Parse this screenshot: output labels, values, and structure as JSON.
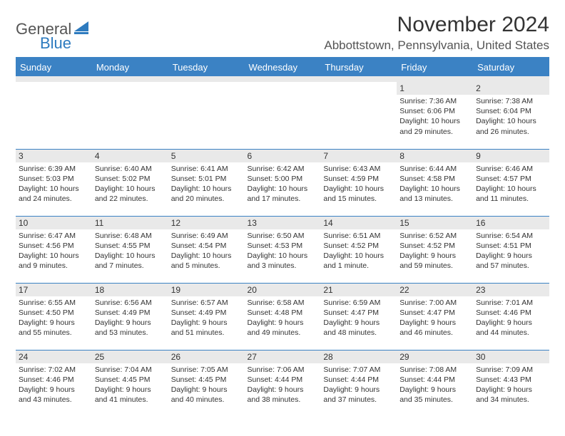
{
  "logo": {
    "part1": "General",
    "part2": "Blue"
  },
  "title": "November 2024",
  "location": "Abbottstown, Pennsylvania, United States",
  "colors": {
    "accent": "#3b82c4",
    "header_bg": "#3b82c4",
    "daynum_bg": "#e9e9e9",
    "text": "#333333",
    "logo_gray": "#555555",
    "logo_blue": "#2e7bbf"
  },
  "day_names": [
    "Sunday",
    "Monday",
    "Tuesday",
    "Wednesday",
    "Thursday",
    "Friday",
    "Saturday"
  ],
  "weeks": [
    [
      null,
      null,
      null,
      null,
      null,
      {
        "n": "1",
        "sunrise": "7:36 AM",
        "sunset": "6:06 PM",
        "daylight": "10 hours and 29 minutes."
      },
      {
        "n": "2",
        "sunrise": "7:38 AM",
        "sunset": "6:04 PM",
        "daylight": "10 hours and 26 minutes."
      }
    ],
    [
      {
        "n": "3",
        "sunrise": "6:39 AM",
        "sunset": "5:03 PM",
        "daylight": "10 hours and 24 minutes."
      },
      {
        "n": "4",
        "sunrise": "6:40 AM",
        "sunset": "5:02 PM",
        "daylight": "10 hours and 22 minutes."
      },
      {
        "n": "5",
        "sunrise": "6:41 AM",
        "sunset": "5:01 PM",
        "daylight": "10 hours and 20 minutes."
      },
      {
        "n": "6",
        "sunrise": "6:42 AM",
        "sunset": "5:00 PM",
        "daylight": "10 hours and 17 minutes."
      },
      {
        "n": "7",
        "sunrise": "6:43 AM",
        "sunset": "4:59 PM",
        "daylight": "10 hours and 15 minutes."
      },
      {
        "n": "8",
        "sunrise": "6:44 AM",
        "sunset": "4:58 PM",
        "daylight": "10 hours and 13 minutes."
      },
      {
        "n": "9",
        "sunrise": "6:46 AM",
        "sunset": "4:57 PM",
        "daylight": "10 hours and 11 minutes."
      }
    ],
    [
      {
        "n": "10",
        "sunrise": "6:47 AM",
        "sunset": "4:56 PM",
        "daylight": "10 hours and 9 minutes."
      },
      {
        "n": "11",
        "sunrise": "6:48 AM",
        "sunset": "4:55 PM",
        "daylight": "10 hours and 7 minutes."
      },
      {
        "n": "12",
        "sunrise": "6:49 AM",
        "sunset": "4:54 PM",
        "daylight": "10 hours and 5 minutes."
      },
      {
        "n": "13",
        "sunrise": "6:50 AM",
        "sunset": "4:53 PM",
        "daylight": "10 hours and 3 minutes."
      },
      {
        "n": "14",
        "sunrise": "6:51 AM",
        "sunset": "4:52 PM",
        "daylight": "10 hours and 1 minute."
      },
      {
        "n": "15",
        "sunrise": "6:52 AM",
        "sunset": "4:52 PM",
        "daylight": "9 hours and 59 minutes."
      },
      {
        "n": "16",
        "sunrise": "6:54 AM",
        "sunset": "4:51 PM",
        "daylight": "9 hours and 57 minutes."
      }
    ],
    [
      {
        "n": "17",
        "sunrise": "6:55 AM",
        "sunset": "4:50 PM",
        "daylight": "9 hours and 55 minutes."
      },
      {
        "n": "18",
        "sunrise": "6:56 AM",
        "sunset": "4:49 PM",
        "daylight": "9 hours and 53 minutes."
      },
      {
        "n": "19",
        "sunrise": "6:57 AM",
        "sunset": "4:49 PM",
        "daylight": "9 hours and 51 minutes."
      },
      {
        "n": "20",
        "sunrise": "6:58 AM",
        "sunset": "4:48 PM",
        "daylight": "9 hours and 49 minutes."
      },
      {
        "n": "21",
        "sunrise": "6:59 AM",
        "sunset": "4:47 PM",
        "daylight": "9 hours and 48 minutes."
      },
      {
        "n": "22",
        "sunrise": "7:00 AM",
        "sunset": "4:47 PM",
        "daylight": "9 hours and 46 minutes."
      },
      {
        "n": "23",
        "sunrise": "7:01 AM",
        "sunset": "4:46 PM",
        "daylight": "9 hours and 44 minutes."
      }
    ],
    [
      {
        "n": "24",
        "sunrise": "7:02 AM",
        "sunset": "4:46 PM",
        "daylight": "9 hours and 43 minutes."
      },
      {
        "n": "25",
        "sunrise": "7:04 AM",
        "sunset": "4:45 PM",
        "daylight": "9 hours and 41 minutes."
      },
      {
        "n": "26",
        "sunrise": "7:05 AM",
        "sunset": "4:45 PM",
        "daylight": "9 hours and 40 minutes."
      },
      {
        "n": "27",
        "sunrise": "7:06 AM",
        "sunset": "4:44 PM",
        "daylight": "9 hours and 38 minutes."
      },
      {
        "n": "28",
        "sunrise": "7:07 AM",
        "sunset": "4:44 PM",
        "daylight": "9 hours and 37 minutes."
      },
      {
        "n": "29",
        "sunrise": "7:08 AM",
        "sunset": "4:44 PM",
        "daylight": "9 hours and 35 minutes."
      },
      {
        "n": "30",
        "sunrise": "7:09 AM",
        "sunset": "4:43 PM",
        "daylight": "9 hours and 34 minutes."
      }
    ]
  ],
  "labels": {
    "sunrise": "Sunrise:",
    "sunset": "Sunset:",
    "daylight": "Daylight:"
  }
}
